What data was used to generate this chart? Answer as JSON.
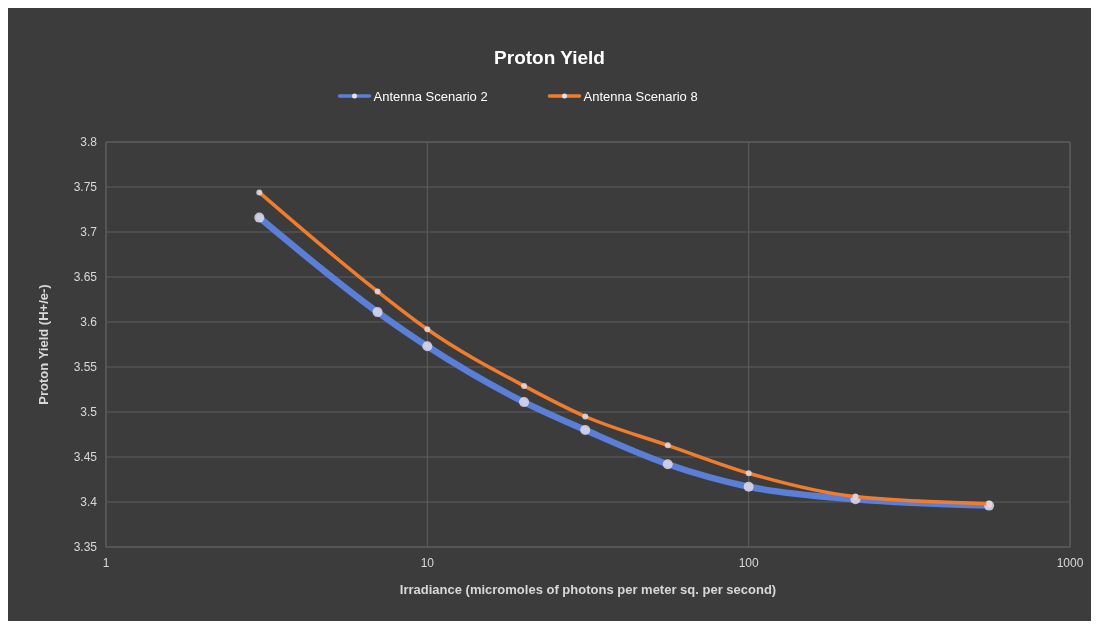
{
  "chart_data": {
    "type": "line",
    "title": "Proton Yield",
    "xlabel": "Irradiance (micromoles of photons per meter sq. per second)",
    "ylabel": "Proton Yield (H+/e-)",
    "x": [
      3,
      7,
      10,
      20,
      31,
      56,
      100,
      215,
      560
    ],
    "series": [
      {
        "name": "Antenna Scenario 2",
        "color": "#5b7fd6",
        "values": [
          3.716,
          3.611,
          3.573,
          3.511,
          3.48,
          3.442,
          3.417,
          3.403,
          3.396
        ]
      },
      {
        "name": "Antenna Scenario 8",
        "color": "#f07d2e",
        "values": [
          3.744,
          3.634,
          3.592,
          3.529,
          3.495,
          3.463,
          3.432,
          3.406,
          3.398
        ]
      }
    ],
    "log": "x",
    "xlim": [
      1,
      1000
    ],
    "xticks": [
      1,
      10,
      100,
      1000
    ],
    "ylim": [
      3.35,
      3.8
    ],
    "yticks": [
      3.35,
      3.4,
      3.45,
      3.5,
      3.55,
      3.6,
      3.65,
      3.7,
      3.75,
      3.8
    ],
    "grid": true,
    "legend": "top",
    "marker": "circle",
    "line_style": "solid"
  }
}
